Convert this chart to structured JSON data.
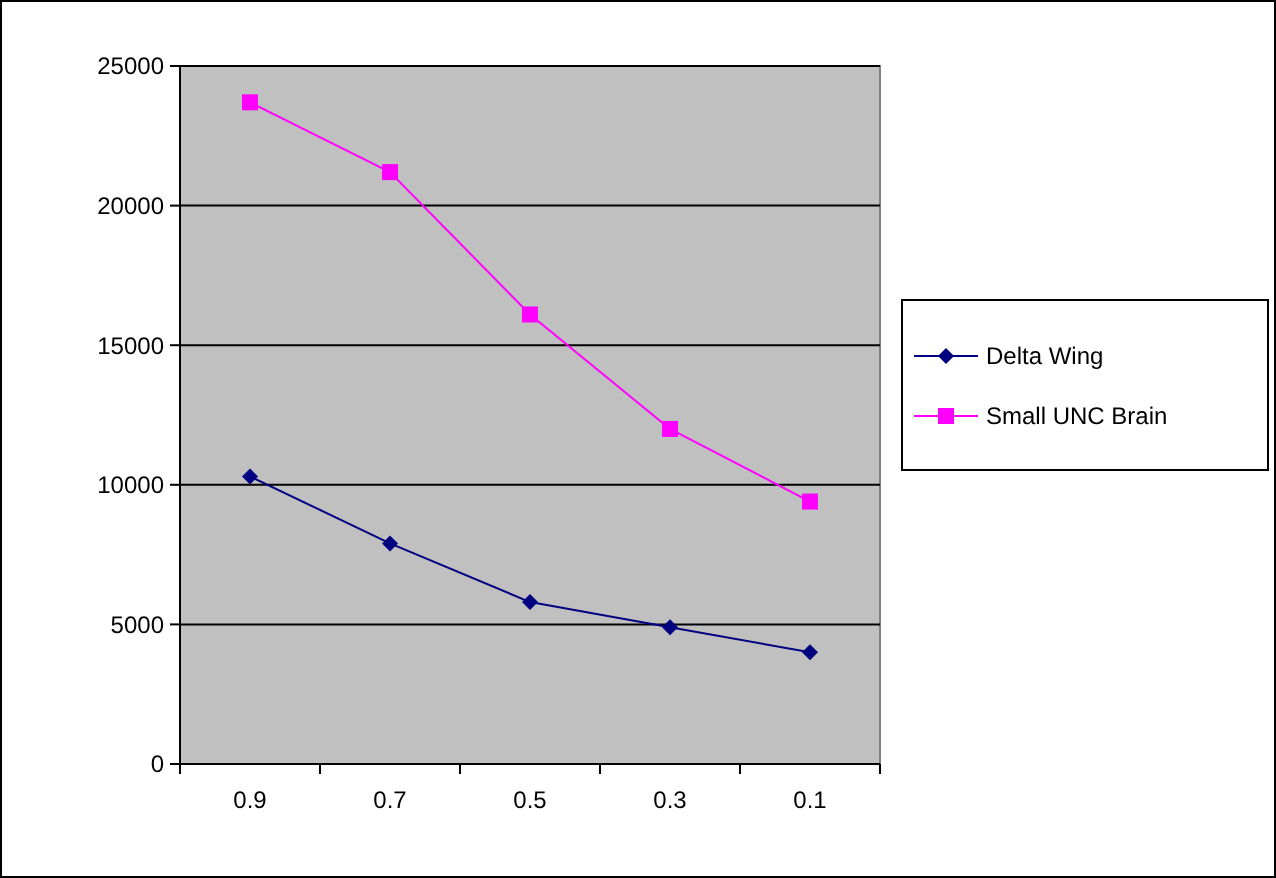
{
  "chart_data": {
    "type": "line",
    "categories": [
      "0.9",
      "0.7",
      "0.5",
      "0.3",
      "0.1"
    ],
    "series": [
      {
        "name": "Delta Wing",
        "color": "#000080",
        "marker": "diamond",
        "values": [
          10300,
          7900,
          5800,
          4900,
          4000
        ]
      },
      {
        "name": "Small UNC Brain",
        "color": "#ff00ff",
        "marker": "square",
        "values": [
          23700,
          21200,
          16100,
          12000,
          9400
        ]
      }
    ],
    "ylim": [
      0,
      25000
    ],
    "yticks": [
      0,
      5000,
      10000,
      15000,
      20000,
      25000
    ],
    "grid": "y",
    "legend": "right"
  }
}
